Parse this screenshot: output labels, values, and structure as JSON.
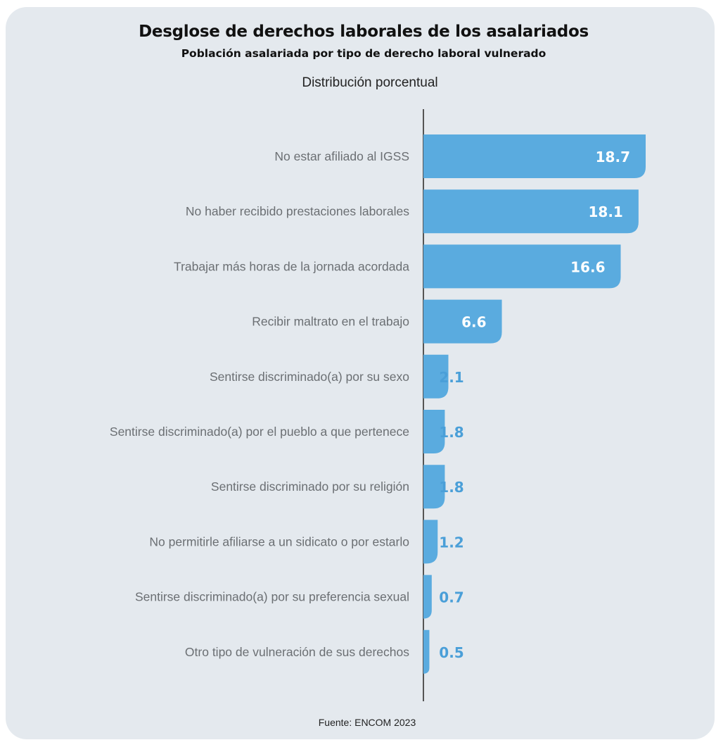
{
  "header": {
    "title": "Desglose de derechos laborales de los asalariados",
    "subtitle": "Población asalariada por tipo de derecho laboral vulnerado",
    "note": "Distribución porcentual"
  },
  "footer": {
    "source": "Fuente: ENCOM 2023"
  },
  "colors": {
    "bar": "#5aabdf",
    "value_inside": "#ffffff",
    "value_outside": "#4a9fd8",
    "axis": "#555555",
    "background": "#e4e9ee"
  },
  "chart_data": {
    "type": "bar",
    "orientation": "horizontal",
    "categories": [
      "No estar afiliado al IGSS",
      "No haber recibido prestaciones laborales",
      "Trabajar más horas de la jornada acordada",
      "Recibir maltrato en el trabajo",
      "Sentirse discriminado(a) por su sexo",
      "Sentirse discriminado(a) por el pueblo a que pertenece",
      "Sentirse discriminado por su religión",
      "No permitirle afiliarse a un sidicato o por estarlo",
      "Sentirse discriminado(a) por su preferencia sexual",
      "Otro tipo de vulneración de sus derechos"
    ],
    "values": [
      18.7,
      18.1,
      16.6,
      6.6,
      2.1,
      1.8,
      1.8,
      1.2,
      0.7,
      0.5
    ],
    "value_labels": [
      "18.7",
      "18.1",
      "16.6",
      "6.6",
      "2.1",
      "1.8",
      "1.8",
      "1.2",
      "0.7",
      "0.5"
    ],
    "xlim": [
      0,
      18.7
    ],
    "grid": false,
    "legend": "none"
  }
}
